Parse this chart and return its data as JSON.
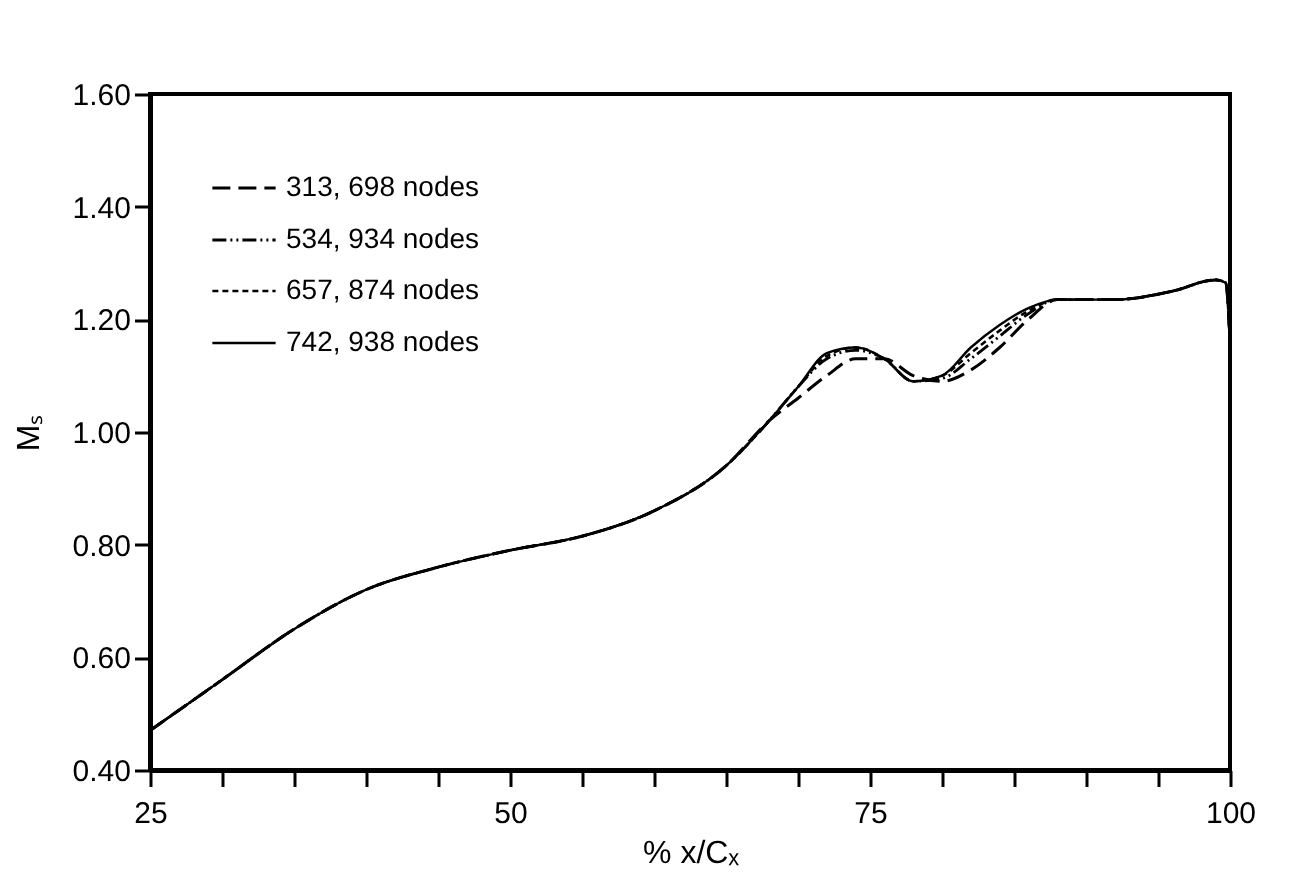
{
  "chart_data": {
    "type": "line",
    "xlabel": "% x/Cₓ",
    "ylabel": "Mₛ",
    "x": [
      25,
      30,
      35,
      40,
      45,
      50,
      55,
      60,
      65,
      68,
      70,
      72,
      74,
      76,
      78,
      80,
      82,
      84,
      86,
      88,
      92,
      96,
      99,
      99.7,
      100
    ],
    "series": [
      {
        "name": "313, 698 nodes",
        "color": "#000000",
        "line_style": "dashed",
        "values": [
          0.47,
          0.56,
          0.65,
          0.72,
          0.76,
          0.79,
          0.815,
          0.86,
          0.94,
          1.02,
          1.06,
          1.1,
          1.13,
          1.13,
          1.1,
          1.09,
          1.11,
          1.15,
          1.2,
          1.235,
          1.235,
          1.25,
          1.27,
          1.265,
          1.16
        ]
      },
      {
        "name": "534, 934 nodes",
        "color": "#000000",
        "line_style": "dashdot",
        "values": [
          0.47,
          0.56,
          0.65,
          0.72,
          0.76,
          0.79,
          0.815,
          0.86,
          0.94,
          1.02,
          1.08,
          1.13,
          1.145,
          1.13,
          1.09,
          1.095,
          1.13,
          1.17,
          1.21,
          1.235,
          1.235,
          1.25,
          1.27,
          1.265,
          1.16
        ]
      },
      {
        "name": "657, 874 nodes",
        "color": "#000000",
        "line_style": "dotted",
        "values": [
          0.47,
          0.56,
          0.65,
          0.72,
          0.76,
          0.79,
          0.815,
          0.86,
          0.94,
          1.02,
          1.08,
          1.135,
          1.15,
          1.13,
          1.09,
          1.1,
          1.14,
          1.18,
          1.215,
          1.235,
          1.235,
          1.25,
          1.27,
          1.265,
          1.16
        ]
      },
      {
        "name": "742, 938 nodes",
        "color": "#000000",
        "line_style": "solid",
        "values": [
          0.47,
          0.56,
          0.65,
          0.72,
          0.76,
          0.79,
          0.815,
          0.86,
          0.94,
          1.02,
          1.08,
          1.14,
          1.15,
          1.13,
          1.09,
          1.1,
          1.15,
          1.19,
          1.22,
          1.235,
          1.235,
          1.25,
          1.27,
          1.265,
          1.16
        ]
      }
    ],
    "xlim": [
      25,
      100
    ],
    "xticks": [
      25,
      {
        "value": 30,
        "label": null
      },
      {
        "value": 35,
        "label": null
      },
      {
        "value": 40,
        "label": null
      },
      {
        "value": 45,
        "label": null
      },
      50,
      {
        "value": 55,
        "label": null
      },
      {
        "value": 60,
        "label": null
      },
      {
        "value": 65,
        "label": null
      },
      {
        "value": 70,
        "label": null
      },
      75,
      {
        "value": 80,
        "label": null
      },
      {
        "value": 85,
        "label": null
      },
      {
        "value": 90,
        "label": null
      },
      {
        "value": 95,
        "label": null
      },
      100
    ],
    "ylim": [
      0.4,
      1.6
    ],
    "yticks": [
      {
        "value": 0.4,
        "label": "0.40"
      },
      {
        "value": 0.6,
        "label": "0.60"
      },
      {
        "value": 0.8,
        "label": "0.80"
      },
      {
        "value": 1.0,
        "label": "1.00"
      },
      {
        "value": 1.2,
        "label": "1.20"
      },
      {
        "value": 1.4,
        "label": "1.40"
      },
      {
        "value": 1.6,
        "label": "1.60"
      }
    ],
    "grid": false,
    "legend": "top left",
    "marker": "none"
  }
}
